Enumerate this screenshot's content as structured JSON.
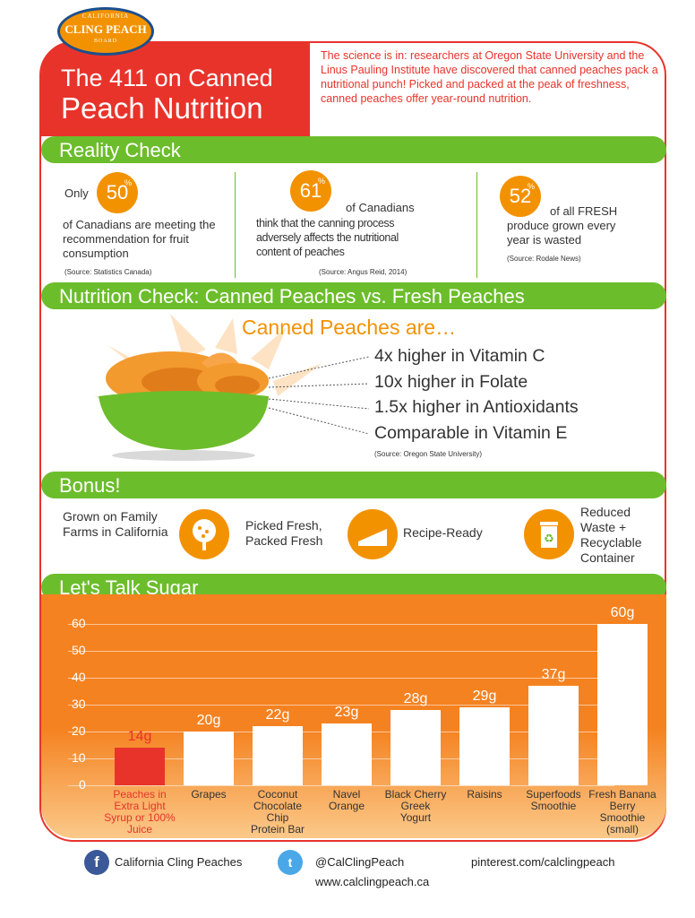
{
  "logo": {
    "top": "CALIFORNIA",
    "main": "CLING PEACH",
    "bottom": "BOARD"
  },
  "header": {
    "title_line1": "The 411 on Canned",
    "title_line2": "Peach    Nutrition",
    "intro": "The science is in: researchers at Oregon State University and the Linus Pauling Institute have discovered that canned peaches pack a nutritional punch! Picked and packed at the peak of freshness, canned peaches offer year-round nutrition."
  },
  "reality": {
    "heading": "Reality Check",
    "stats": [
      {
        "prefix": "Only",
        "number": "50",
        "pct": "%",
        "text": "of Canadians are meeting the recommendation for fruit consumption",
        "source": "(Source: Statistics Canada)"
      },
      {
        "prefix": "",
        "number": "61",
        "pct": "%",
        "lead": "of Canadians",
        "text": "think that the canning process adversely affects the nutritional content of peaches",
        "source": "(Source: Angus Reid, 2014)"
      },
      {
        "prefix": "",
        "number": "52",
        "pct": "%",
        "lead": "of all FRESH",
        "text": "produce grown every year is wasted",
        "source": "(Source: Rodale News)"
      }
    ]
  },
  "nutrition": {
    "heading": "Nutrition Check: Canned Peaches vs. Fresh Peaches",
    "subtitle": "Canned Peaches are…",
    "facts": [
      "4x higher in Vitamin C",
      "10x higher in Folate",
      "1.5x higher in Antioxidants",
      "Comparable in Vitamin E"
    ],
    "source": "(Source: Oregon State University)"
  },
  "bonus": {
    "heading": "Bonus!",
    "items": [
      {
        "text": "Grown on Family Farms in California",
        "icon": "tree-icon"
      },
      {
        "text": "Picked Fresh, Packed Fresh",
        "icon": ""
      },
      {
        "text": "Recipe-Ready",
        "icon": "pie-slice-icon"
      },
      {
        "text": "Reduced Waste + Recyclable Container",
        "icon": "recycle-bin-icon"
      }
    ]
  },
  "sugar": {
    "heading": "Let's Talk Sugar"
  },
  "chart_data": {
    "type": "bar",
    "title": "Let's Talk Sugar",
    "categories": [
      "Peaches in Extra Light Syrup or 100% Juice",
      "Grapes",
      "Coconut Chocolate Chip Protein Bar",
      "Navel Orange",
      "Black Cherry Greek Yogurt",
      "Raisins",
      "Superfoods Smoothie",
      "Fresh Banana Berry Smoothie (small)"
    ],
    "category_lines": [
      [
        "Peaches in",
        "Extra Light",
        "Syrup or 100%",
        "Juice"
      ],
      [
        "Grapes"
      ],
      [
        "Coconut",
        "Chocolate",
        "Chip",
        "Protein Bar"
      ],
      [
        "Navel",
        "Orange"
      ],
      [
        "Black Cherry",
        "Greek",
        "Yogurt"
      ],
      [
        "Raisins"
      ],
      [
        "Superfoods",
        "Smoothie"
      ],
      [
        "Fresh Banana",
        "Berry",
        "Smoothie",
        "(small)"
      ]
    ],
    "values": [
      14,
      20,
      22,
      23,
      28,
      29,
      37,
      60
    ],
    "value_labels": [
      "14g",
      "20g",
      "22g",
      "23g",
      "28g",
      "29g",
      "37g",
      "60g"
    ],
    "highlight_index": 0,
    "ylim": [
      0,
      60
    ],
    "yticks": [
      0,
      10,
      20,
      30,
      40,
      50,
      60
    ],
    "xlabel": "",
    "ylabel": "",
    "grid": true,
    "colors": {
      "bar": "#ffffff",
      "highlight": "#e8332b",
      "background": "#f58220"
    }
  },
  "footer": {
    "facebook": "California Cling Peaches",
    "twitter": "@CalClingPeach",
    "pinterest": "pinterest.com/calclingpeach",
    "website": "www.calclingpeach.ca"
  },
  "colors": {
    "red": "#e8332b",
    "orange": "#f39200",
    "green": "#6cbd2b",
    "facebook": "#3b5998",
    "twitter": "#4aa8e8"
  }
}
